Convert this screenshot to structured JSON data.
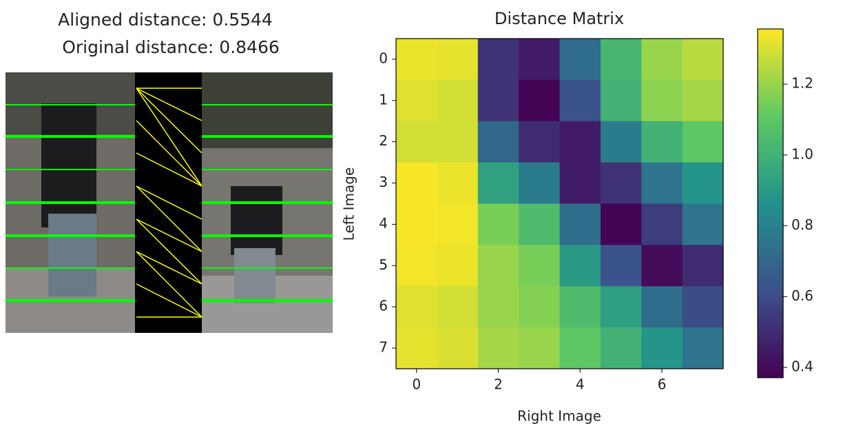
{
  "left_panel": {
    "title_lines": [
      "Aligned distance: 0.5544",
      "Original distance: 0.8466"
    ]
  },
  "chart_data": {
    "type": "heatmap",
    "title": "Distance Matrix",
    "xlabel": "Right Image",
    "ylabel": "Left Image",
    "colormap": "viridis",
    "xlim": [
      -0.5,
      7.5
    ],
    "ylim": [
      7.5,
      -0.5
    ],
    "xticks": [
      0,
      2,
      4,
      6
    ],
    "yticks": [
      0,
      1,
      2,
      3,
      4,
      5,
      6,
      7
    ],
    "values": [
      [
        1.33,
        1.32,
        0.52,
        0.45,
        0.72,
        1.02,
        1.2,
        1.25
      ],
      [
        1.31,
        1.29,
        0.52,
        0.38,
        0.62,
        1.0,
        1.18,
        1.22
      ],
      [
        1.29,
        1.29,
        0.7,
        0.5,
        0.45,
        0.78,
        1.0,
        1.1
      ],
      [
        1.35,
        1.33,
        0.93,
        0.78,
        0.45,
        0.52,
        0.75,
        0.88
      ],
      [
        1.35,
        1.34,
        1.15,
        1.05,
        0.72,
        0.38,
        0.55,
        0.75
      ],
      [
        1.34,
        1.33,
        1.2,
        1.15,
        0.9,
        0.62,
        0.4,
        0.5
      ],
      [
        1.31,
        1.29,
        1.2,
        1.17,
        1.05,
        0.92,
        0.72,
        0.6
      ],
      [
        1.32,
        1.3,
        1.22,
        1.2,
        1.1,
        1.0,
        0.88,
        0.75
      ]
    ],
    "clim": [
      0.371,
      1.356
    ],
    "cticks": [
      0.4,
      0.6,
      0.8,
      {
        "value": 1.0,
        "label": "1.0"
      },
      1.2
    ]
  }
}
